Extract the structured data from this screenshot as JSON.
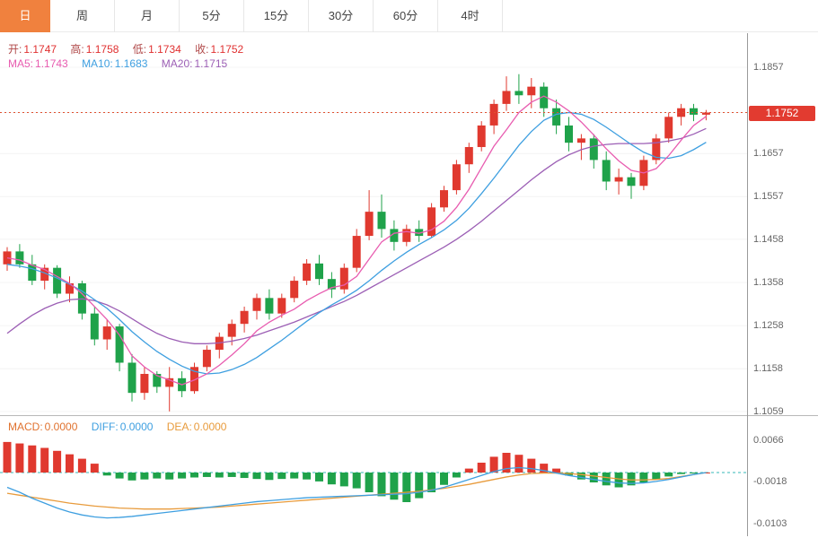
{
  "toolbar": {
    "tabs": [
      {
        "label": "日",
        "active": true
      },
      {
        "label": "周",
        "active": false
      },
      {
        "label": "月",
        "active": false
      },
      {
        "label": "5分",
        "active": false
      },
      {
        "label": "15分",
        "active": false
      },
      {
        "label": "30分",
        "active": false
      },
      {
        "label": "60分",
        "active": false
      },
      {
        "label": "4时",
        "active": false
      }
    ]
  },
  "ohlc": {
    "open_label": "开:",
    "open": "1.1747",
    "high_label": "高:",
    "high": "1.1758",
    "low_label": "低:",
    "low": "1.1734",
    "close_label": "收:",
    "close": "1.1752"
  },
  "ma": {
    "ma5_label": "MA5:",
    "ma5": "1.1743",
    "ma10_label": "MA10:",
    "ma10": "1.1683",
    "ma20_label": "MA20:",
    "ma20": "1.1715"
  },
  "macd_legend": {
    "macd_label": "MACD:",
    "macd": "0.0000",
    "diff_label": "DIFF:",
    "diff": "0.0000",
    "dea_label": "DEA:",
    "dea": "0.0000"
  },
  "price_tag": "1.1752",
  "colors": {
    "up_red": "#e0392f",
    "down_green": "#1fa24a",
    "ohlc_label": "#b04848",
    "ohlc_value": "#e03030",
    "ma5_pink": "#e85cb0",
    "ma10_blue": "#3e9fe0",
    "ma20_purple": "#9c5fb5",
    "macd_orange": "#e0722f",
    "diff_blue": "#3e9fe0",
    "dea_orange": "#e89b3c",
    "tab_active_bg": "#f0813e",
    "price_tag_bg": "#e23b30",
    "axis_text": "#666666",
    "dotted_line": "#e05030",
    "zero_line": "#35b8b8"
  },
  "chart_data": {
    "type": "candlestick",
    "sub_indicator": "MACD",
    "legend_position": "top-left",
    "price_axis_labels": [
      "1.1857",
      "1.1752",
      "1.1657",
      "1.1557",
      "1.1458",
      "1.1358",
      "1.1258",
      "1.1158",
      "1.1059"
    ],
    "current_price": 1.1752,
    "candles": [
      [
        1.14,
        1.144,
        1.1385,
        1.143
      ],
      [
        1.143,
        1.1447,
        1.1392,
        1.14
      ],
      [
        1.14,
        1.1422,
        1.1352,
        1.1362
      ],
      [
        1.1362,
        1.14,
        1.1342,
        1.1392
      ],
      [
        1.1392,
        1.1398,
        1.1322,
        1.1332
      ],
      [
        1.1332,
        1.1372,
        1.1312,
        1.1356
      ],
      [
        1.1356,
        1.1362,
        1.1272,
        1.1286
      ],
      [
        1.1286,
        1.1302,
        1.1212,
        1.1226
      ],
      [
        1.1226,
        1.1272,
        1.1202,
        1.1256
      ],
      [
        1.1256,
        1.1262,
        1.1152,
        1.1172
      ],
      [
        1.1172,
        1.1192,
        1.1082,
        1.1102
      ],
      [
        1.1102,
        1.1162,
        1.1086,
        1.1146
      ],
      [
        1.1146,
        1.1152,
        1.1102,
        1.1116
      ],
      [
        1.1116,
        1.1162,
        1.1059,
        1.1136
      ],
      [
        1.1136,
        1.1152,
        1.1092,
        1.1106
      ],
      [
        1.1106,
        1.1172,
        1.11,
        1.1162
      ],
      [
        1.1162,
        1.1212,
        1.1152,
        1.1202
      ],
      [
        1.1202,
        1.1242,
        1.1182,
        1.1232
      ],
      [
        1.1232,
        1.1272,
        1.1212,
        1.1262
      ],
      [
        1.1262,
        1.1302,
        1.1242,
        1.1292
      ],
      [
        1.1292,
        1.1332,
        1.1272,
        1.1322
      ],
      [
        1.1322,
        1.1342,
        1.1272,
        1.1286
      ],
      [
        1.1286,
        1.1332,
        1.1276,
        1.1322
      ],
      [
        1.1322,
        1.1372,
        1.1312,
        1.1362
      ],
      [
        1.1362,
        1.1412,
        1.1352,
        1.1402
      ],
      [
        1.1402,
        1.1422,
        1.1352,
        1.1366
      ],
      [
        1.1366,
        1.1382,
        1.1322,
        1.1342
      ],
      [
        1.1342,
        1.1402,
        1.1332,
        1.1392
      ],
      [
        1.1392,
        1.1482,
        1.1382,
        1.1466
      ],
      [
        1.1466,
        1.1572,
        1.1456,
        1.1522
      ],
      [
        1.1522,
        1.1562,
        1.1462,
        1.1482
      ],
      [
        1.1482,
        1.1502,
        1.1432,
        1.1452
      ],
      [
        1.1452,
        1.1492,
        1.1442,
        1.1482
      ],
      [
        1.1482,
        1.1502,
        1.1452,
        1.1466
      ],
      [
        1.1466,
        1.1542,
        1.1462,
        1.1532
      ],
      [
        1.1532,
        1.1582,
        1.1522,
        1.1572
      ],
      [
        1.1572,
        1.1642,
        1.1562,
        1.1632
      ],
      [
        1.1632,
        1.1682,
        1.1612,
        1.1672
      ],
      [
        1.1672,
        1.1732,
        1.1662,
        1.1722
      ],
      [
        1.1722,
        1.1782,
        1.1702,
        1.1772
      ],
      [
        1.1772,
        1.1836,
        1.1756,
        1.1802
      ],
      [
        1.1802,
        1.1841,
        1.1772,
        1.1792
      ],
      [
        1.1792,
        1.1832,
        1.1762,
        1.1812
      ],
      [
        1.1812,
        1.1822,
        1.1742,
        1.1762
      ],
      [
        1.1762,
        1.1782,
        1.1702,
        1.1722
      ],
      [
        1.1722,
        1.1742,
        1.1662,
        1.1682
      ],
      [
        1.1682,
        1.1702,
        1.1642,
        1.1692
      ],
      [
        1.1692,
        1.1702,
        1.1622,
        1.1642
      ],
      [
        1.1642,
        1.1662,
        1.1572,
        1.1592
      ],
      [
        1.1592,
        1.1622,
        1.1562,
        1.1602
      ],
      [
        1.1602,
        1.1612,
        1.1552,
        1.1582
      ],
      [
        1.1582,
        1.1652,
        1.1572,
        1.1642
      ],
      [
        1.1642,
        1.1702,
        1.1632,
        1.1692
      ],
      [
        1.1692,
        1.1752,
        1.1682,
        1.1742
      ],
      [
        1.1742,
        1.1772,
        1.1722,
        1.1762
      ],
      [
        1.1762,
        1.1772,
        1.1732,
        1.1747
      ],
      [
        1.1747,
        1.1758,
        1.1734,
        1.1752
      ]
    ],
    "ma5": [
      1.1415,
      1.141,
      1.1398,
      1.1388,
      1.1372,
      1.1356,
      1.1332,
      1.1302,
      1.1272,
      1.1236,
      1.1188,
      1.1162,
      1.1142,
      1.1132,
      1.1121,
      1.1132,
      1.1146,
      1.1166,
      1.119,
      1.1216,
      1.1246,
      1.1266,
      1.1282,
      1.1296,
      1.1316,
      1.1332,
      1.1346,
      1.1352,
      1.1372,
      1.1412,
      1.1452,
      1.1472,
      1.1476,
      1.1472,
      1.148,
      1.15,
      1.1532,
      1.1574,
      1.1624,
      1.1674,
      1.1712,
      1.1752,
      1.1776,
      1.179,
      1.1776,
      1.1756,
      1.173,
      1.17,
      1.1668,
      1.164,
      1.1618,
      1.1612,
      1.1622,
      1.1652,
      1.1688,
      1.1722,
      1.1743
    ],
    "ma10": [
      1.14,
      1.1396,
      1.139,
      1.138,
      1.1368,
      1.1354,
      1.1338,
      1.1318,
      1.1298,
      1.1272,
      1.1244,
      1.122,
      1.1198,
      1.118,
      1.1164,
      1.1152,
      1.1146,
      1.1148,
      1.1156,
      1.1168,
      1.1184,
      1.1204,
      1.1224,
      1.1246,
      1.1268,
      1.1288,
      1.1306,
      1.1322,
      1.134,
      1.1362,
      1.1386,
      1.1408,
      1.1428,
      1.1446,
      1.1462,
      1.148,
      1.1502,
      1.153,
      1.1564,
      1.16,
      1.1638,
      1.1676,
      1.1708,
      1.1734,
      1.1748,
      1.1752,
      1.1748,
      1.1736,
      1.1718,
      1.1698,
      1.1678,
      1.166,
      1.1648,
      1.1646,
      1.1652,
      1.1666,
      1.1683
    ],
    "ma20": [
      1.124,
      1.1262,
      1.1282,
      1.1298,
      1.131,
      1.1318,
      1.132,
      1.1316,
      1.1306,
      1.1292,
      1.1274,
      1.1256,
      1.124,
      1.1228,
      1.122,
      1.1216,
      1.1216,
      1.1218,
      1.1222,
      1.1228,
      1.1236,
      1.1246,
      1.1256,
      1.1266,
      1.1278,
      1.129,
      1.1302,
      1.1314,
      1.1328,
      1.1344,
      1.136,
      1.1376,
      1.1392,
      1.1408,
      1.1424,
      1.144,
      1.1458,
      1.1478,
      1.15,
      1.1524,
      1.1548,
      1.1572,
      1.1596,
      1.1618,
      1.1638,
      1.1654,
      1.1666,
      1.1674,
      1.1678,
      1.168,
      1.168,
      1.168,
      1.1682,
      1.1686,
      1.1692,
      1.1702,
      1.1715
    ],
    "macd": {
      "axis_labels": [
        "0.0066",
        "-0.0018",
        "-0.0103"
      ],
      "hist": [
        0.0062,
        0.0059,
        0.0055,
        0.005,
        0.0044,
        0.0037,
        0.0028,
        0.0018,
        -0.0006,
        -0.0012,
        -0.0016,
        -0.0014,
        -0.0012,
        -0.0014,
        -0.0012,
        -0.001,
        -0.0009,
        -0.001,
        -0.0009,
        -0.0011,
        -0.0013,
        -0.0015,
        -0.0013,
        -0.0012,
        -0.0014,
        -0.0018,
        -0.0024,
        -0.0028,
        -0.0032,
        -0.004,
        -0.0048,
        -0.0055,
        -0.006,
        -0.0052,
        -0.004,
        -0.0025,
        -0.001,
        0.0008,
        0.002,
        0.0032,
        0.004,
        0.0036,
        0.0028,
        0.0018,
        0.0008,
        -0.0006,
        -0.0014,
        -0.002,
        -0.0026,
        -0.003,
        -0.0026,
        -0.002,
        -0.0014,
        -0.0008,
        -0.0003,
        -0.0001,
        0.0
      ],
      "diff": [
        -0.003,
        -0.004,
        -0.0052,
        -0.0062,
        -0.0072,
        -0.008,
        -0.0086,
        -0.009,
        -0.0092,
        -0.0091,
        -0.0089,
        -0.0086,
        -0.0083,
        -0.008,
        -0.0077,
        -0.0074,
        -0.0071,
        -0.0068,
        -0.0065,
        -0.0062,
        -0.0059,
        -0.0057,
        -0.0055,
        -0.0053,
        -0.0051,
        -0.005,
        -0.0049,
        -0.0048,
        -0.0047,
        -0.0046,
        -0.0045,
        -0.0044,
        -0.0043,
        -0.004,
        -0.0036,
        -0.003,
        -0.0022,
        -0.0014,
        -0.0006,
        0.0002,
        0.0008,
        0.001,
        0.0008,
        0.0004,
        -0.0001,
        -0.0006,
        -0.001,
        -0.0014,
        -0.0018,
        -0.0021,
        -0.0022,
        -0.0021,
        -0.0018,
        -0.0014,
        -0.0009,
        -0.0004,
        0.0
      ],
      "dea": [
        -0.0042,
        -0.0046,
        -0.005,
        -0.0054,
        -0.0058,
        -0.0062,
        -0.0065,
        -0.0068,
        -0.007,
        -0.0072,
        -0.0073,
        -0.0074,
        -0.0074,
        -0.0074,
        -0.0073,
        -0.0072,
        -0.0071,
        -0.007,
        -0.0068,
        -0.0066,
        -0.0064,
        -0.0062,
        -0.006,
        -0.0058,
        -0.0056,
        -0.0054,
        -0.0052,
        -0.005,
        -0.0048,
        -0.0046,
        -0.0044,
        -0.0042,
        -0.004,
        -0.0038,
        -0.0035,
        -0.0032,
        -0.0028,
        -0.0024,
        -0.0019,
        -0.0014,
        -0.0009,
        -0.0005,
        -0.0002,
        -0.0001,
        -0.0001,
        -0.0002,
        -0.0004,
        -0.0007,
        -0.001,
        -0.0013,
        -0.0015,
        -0.0015,
        -0.0014,
        -0.0012,
        -0.0008,
        -0.0004,
        0.0
      ]
    }
  }
}
